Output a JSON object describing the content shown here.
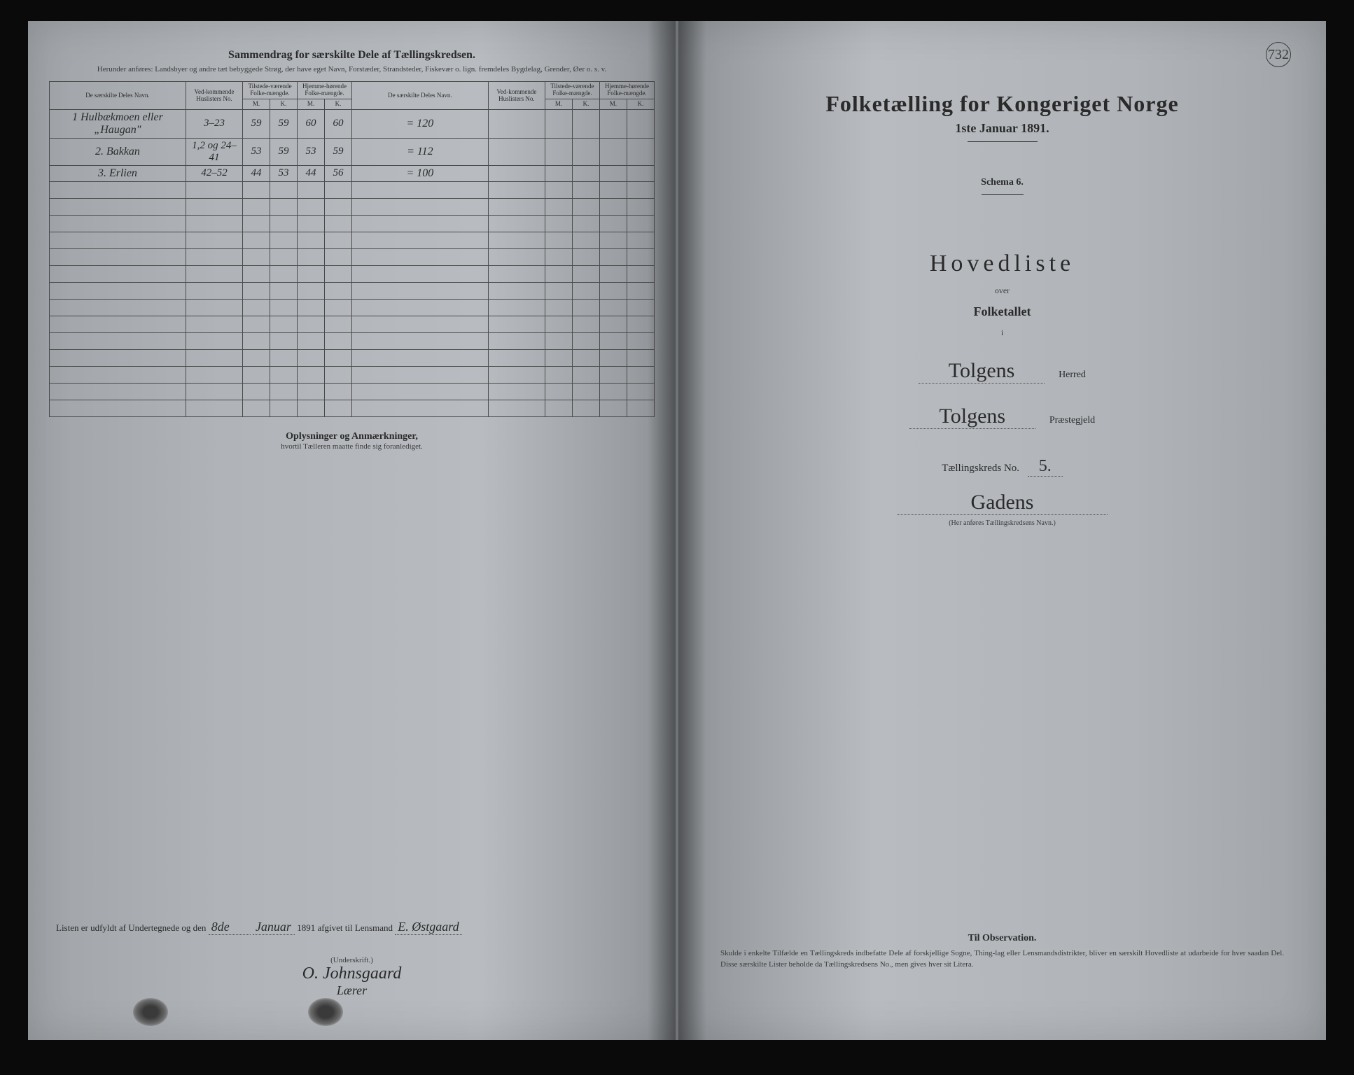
{
  "colors": {
    "paper": "#b8bcc0",
    "ink": "#2a2a2a",
    "faint_ink": "#3a3a3a",
    "border": "#4a4a4a",
    "background": "#1a1a1a"
  },
  "left_page": {
    "header_title": "Sammendrag for særskilte Dele af Tællingskredsen.",
    "header_subtitle": "Herunder anføres: Landsbyer og andre tæt bebyggede Strøg, der have eget Navn, Forstæder, Strandsteder, Fiskevær o. lign. fremdeles Bygdelag, Grender, Øer o. s. v.",
    "table": {
      "col_headers": {
        "name": "De særskilte Deles Navn.",
        "huslister": "Ved-kommende Huslisters No.",
        "tilstede": "Tilstede-værende Folke-mængde.",
        "hjemme": "Hjemme-hørende Folke-mængde.",
        "m": "M.",
        "k": "K."
      },
      "rows": [
        {
          "no": "1",
          "name": "Hulbækmoen eller „Haugan\"",
          "huslister": "3–23",
          "tm": "59",
          "tk": "59",
          "hm": "60",
          "hk": "60",
          "sum": "= 120"
        },
        {
          "no": "2.",
          "name": "Bakkan",
          "huslister": "1,2 og 24–41",
          "tm": "53",
          "tk": "59",
          "hm": "53",
          "hk": "59",
          "sum": "= 112"
        },
        {
          "no": "3.",
          "name": "Erlien",
          "huslister": "42–52",
          "tm": "44",
          "tk": "53",
          "hm": "44",
          "hk": "56",
          "sum": "= 100"
        }
      ],
      "empty_rows": 14
    },
    "oplysninger_title": "Oplysninger og Anmærkninger,",
    "oplysninger_sub": "hvortil Tælleren maatte finde sig foranlediget.",
    "footer": {
      "line_prefix": "Listen er udfyldt af Undertegnede og den",
      "date_day": "8de",
      "date_month": "Januar",
      "date_year": "1891",
      "line_suffix": "afgivet til Lensmand",
      "lensmand": "E. Østgaard",
      "underskrift_label": "(Underskrift.)",
      "signature": "O. Johnsgaard",
      "role": "Lærer"
    }
  },
  "right_page": {
    "page_number": "732",
    "census_title": "Folketælling for Kongeriget Norge",
    "census_date": "1ste Januar 1891.",
    "schema": "Schema 6.",
    "hovedliste": "Hovedliste",
    "over": "over",
    "folketallet": "Folketallet",
    "i": "i",
    "herred_value": "Tolgens",
    "herred_label": "Herred",
    "prestegjeld_value": "Tolgens",
    "prestegjeld_label": "Præstegjeld",
    "kreds_label": "Tællingskreds No.",
    "kreds_no": "5.",
    "kreds_name": "Gadens",
    "her_anfores": "(Her anføres Tællingskredsens Navn.)",
    "observation_title": "Til Observation.",
    "observation_text": "Skulde i enkelte Tilfælde en Tællingskreds indbefatte Dele af forskjellige Sogne, Thing-lag eller Lensmandsdistrikter, bliver en særskilt Hovedliste at udarbeide for hver saadan Del. Disse særskilte Lister beholde da Tællingskredsens No., men gives hver sit Litera."
  }
}
